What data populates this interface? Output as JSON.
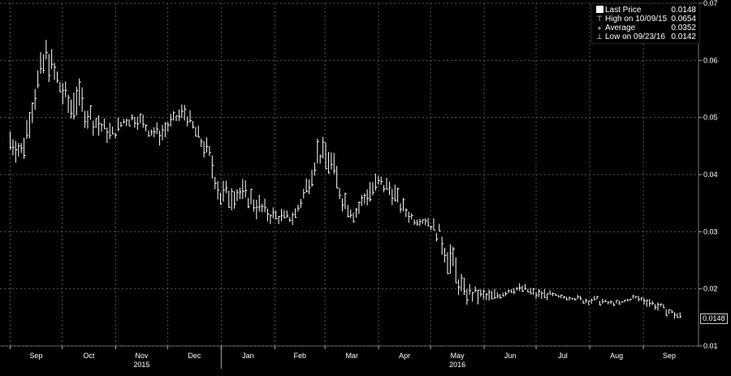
{
  "legend": {
    "items": [
      {
        "glyph": "square-icon",
        "label": "Last Price",
        "value": "0.0148"
      },
      {
        "glyph": "high-marker-icon",
        "label": "High on 10/09/15",
        "value": "0.0654"
      },
      {
        "glyph": "average-marker-icon",
        "label": "Average",
        "value": "0.0352"
      },
      {
        "glyph": "low-marker-icon",
        "label": "Low on 09/23/16",
        "value": "0.0142"
      }
    ]
  },
  "last_price_badge": "0.0148",
  "colors": {
    "background": "#000000",
    "series": "#ffffff",
    "grid": "#555555",
    "axis_text": "#ffffff"
  },
  "chart_data": {
    "type": "line",
    "subtype": "high-low bar (OHLC)",
    "ylim": [
      0.01,
      0.07
    ],
    "y_ticks": [
      "0.07",
      "0.06",
      "0.05",
      "0.04",
      "0.03",
      "0.02",
      "0.01"
    ],
    "x_ticks": [
      "Sep",
      "Oct",
      "Nov",
      "Dec",
      "Jan",
      "Feb",
      "Mar",
      "Apr",
      "May",
      "Jun",
      "Jul",
      "Aug",
      "Sep"
    ],
    "x_year_labels": [
      {
        "label": "2015",
        "month": "Nov"
      },
      {
        "label": "2016",
        "month": "May"
      }
    ],
    "grid": true,
    "legend_position": "top-right",
    "series": [
      {
        "name": "Last Price",
        "x": [
          "2015-09-01",
          "2015-09-08",
          "2015-09-15",
          "2015-09-22",
          "2015-09-29",
          "2015-10-06",
          "2015-10-09",
          "2015-10-16",
          "2015-10-23",
          "2015-10-30",
          "2015-11-06",
          "2015-11-13",
          "2015-11-20",
          "2015-11-27",
          "2015-12-04",
          "2015-12-11",
          "2015-12-18",
          "2015-12-25",
          "2016-01-01",
          "2016-01-08",
          "2016-01-15",
          "2016-01-22",
          "2016-01-29",
          "2016-02-05",
          "2016-02-12",
          "2016-02-19",
          "2016-02-26",
          "2016-03-04",
          "2016-03-11",
          "2016-03-18",
          "2016-03-25",
          "2016-04-01",
          "2016-04-08",
          "2016-04-15",
          "2016-04-22",
          "2016-04-29",
          "2016-05-06",
          "2016-05-13",
          "2016-05-20",
          "2016-05-27",
          "2016-06-03",
          "2016-06-10",
          "2016-06-17",
          "2016-06-24",
          "2016-07-01",
          "2016-07-08",
          "2016-07-15",
          "2016-07-22",
          "2016-07-29",
          "2016-08-05",
          "2016-08-12",
          "2016-08-19",
          "2016-08-26",
          "2016-09-02",
          "2016-09-09",
          "2016-09-16",
          "2016-09-23"
        ],
        "high": [
          0.049,
          0.047,
          0.058,
          0.065,
          0.059,
          0.055,
          0.058,
          0.054,
          0.051,
          0.049,
          0.051,
          0.052,
          0.05,
          0.049,
          0.051,
          0.053,
          0.049,
          0.046,
          0.04,
          0.04,
          0.039,
          0.037,
          0.035,
          0.034,
          0.034,
          0.04,
          0.047,
          0.046,
          0.039,
          0.035,
          0.039,
          0.041,
          0.04,
          0.036,
          0.033,
          0.033,
          0.032,
          0.029,
          0.022,
          0.021,
          0.02,
          0.02,
          0.021,
          0.021,
          0.02,
          0.02,
          0.019,
          0.019,
          0.019,
          0.019,
          0.018,
          0.018,
          0.019,
          0.019,
          0.018,
          0.017,
          0.016
        ],
        "low": [
          0.043,
          0.041,
          0.05,
          0.057,
          0.053,
          0.048,
          0.05,
          0.047,
          0.046,
          0.045,
          0.048,
          0.048,
          0.046,
          0.045,
          0.048,
          0.049,
          0.045,
          0.041,
          0.032,
          0.034,
          0.034,
          0.032,
          0.031,
          0.031,
          0.031,
          0.035,
          0.041,
          0.039,
          0.033,
          0.031,
          0.034,
          0.036,
          0.035,
          0.032,
          0.031,
          0.031,
          0.027,
          0.02,
          0.017,
          0.017,
          0.017,
          0.018,
          0.019,
          0.019,
          0.018,
          0.018,
          0.018,
          0.018,
          0.017,
          0.017,
          0.017,
          0.017,
          0.018,
          0.017,
          0.016,
          0.015,
          0.014
        ]
      }
    ]
  }
}
